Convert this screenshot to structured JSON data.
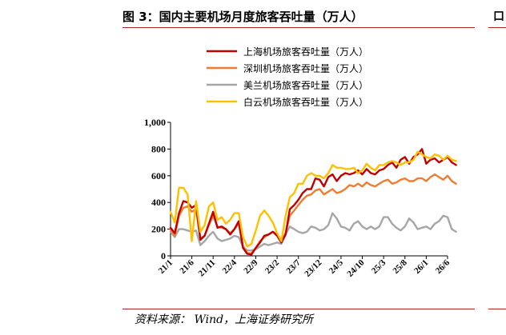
{
  "figure": {
    "title": "图 3：国内主要机场月度旅客吞吐量（万人）",
    "source": "资料来源： Wind，上海证券研究所",
    "edge_mark": "口"
  },
  "chart_data": {
    "type": "line",
    "title": "国内主要机场月度旅客吞吐量（万人）",
    "xlabel": "",
    "ylabel": "",
    "ylim": [
      0,
      1000
    ],
    "yticks": [
      0,
      200,
      400,
      600,
      800,
      1000
    ],
    "ytick_labels": [
      "0",
      "200",
      "400",
      "600",
      "800",
      "1,000"
    ],
    "xlim": [
      "2021-01",
      "2026-06"
    ],
    "xticks": [
      "2021-01",
      "2021-06",
      "2021-11",
      "2022-04",
      "2022-09",
      "2023-02",
      "2023-07",
      "2023-12",
      "2024-05",
      "2024-10",
      "2025-03",
      "2025-08",
      "2026-01",
      "2026-06"
    ],
    "xtick_labels": [
      "21/1",
      "21/6",
      "21/11",
      "22/4",
      "22/9",
      "23/2",
      "23/7",
      "23/12",
      "24/5",
      "24/10",
      "25/3",
      "25/8",
      "26/1",
      "26/6"
    ],
    "grid": false,
    "legend_position": "top-center",
    "series": [
      {
        "name": "上海机场旅客吞吐量（万人）",
        "color": "#c00000",
        "values": [
          210,
          170,
          320,
          410,
          400,
          360,
          380,
          120,
          150,
          240,
          330,
          210,
          220,
          200,
          160,
          200,
          260,
          60,
          15,
          10,
          60,
          100,
          150,
          160,
          180,
          150,
          100,
          160,
          350,
          380,
          420,
          470,
          500,
          500,
          580,
          570,
          520,
          590,
          610,
          560,
          600,
          620,
          610,
          620,
          640,
          610,
          650,
          620,
          610,
          640,
          650,
          680,
          700,
          660,
          720,
          740,
          690,
          740,
          760,
          800,
          690,
          720,
          730,
          700,
          720,
          740,
          700,
          680
        ]
      },
      {
        "name": "深圳机场旅客吞吐量（万人）",
        "color": "#ed7d31",
        "values": [
          200,
          150,
          300,
          360,
          370,
          330,
          350,
          130,
          150,
          230,
          300,
          220,
          210,
          200,
          170,
          200,
          240,
          70,
          20,
          20,
          60,
          110,
          140,
          160,
          180,
          160,
          120,
          170,
          300,
          340,
          380,
          420,
          450,
          460,
          490,
          500,
          460,
          480,
          500,
          470,
          480,
          500,
          530,
          520,
          540,
          520,
          550,
          530,
          520,
          540,
          560,
          570,
          540,
          550,
          570,
          580,
          560,
          560,
          580,
          580,
          560,
          590,
          610,
          590,
          570,
          600,
          560,
          540
        ]
      },
      {
        "name": "美兰机场旅客吞吐量（万人）",
        "color": "#a6a6a6",
        "values": [
          180,
          140,
          200,
          200,
          190,
          180,
          190,
          80,
          110,
          150,
          180,
          130,
          110,
          120,
          130,
          150,
          140,
          70,
          40,
          40,
          50,
          70,
          90,
          80,
          90,
          100,
          90,
          160,
          220,
          200,
          180,
          170,
          180,
          220,
          210,
          190,
          200,
          230,
          320,
          280,
          220,
          210,
          190,
          240,
          260,
          220,
          200,
          220,
          200,
          220,
          290,
          290,
          240,
          210,
          190,
          220,
          280,
          250,
          200,
          210,
          220,
          200,
          240,
          260,
          300,
          290,
          200,
          180
        ]
      },
      {
        "name": "白云机场旅客吞吐量（万人）",
        "color": "#ffc000",
        "values": [
          330,
          250,
          510,
          510,
          460,
          110,
          410,
          180,
          230,
          370,
          400,
          270,
          290,
          240,
          270,
          320,
          320,
          140,
          70,
          90,
          190,
          300,
          340,
          300,
          250,
          170,
          110,
          300,
          440,
          470,
          540,
          540,
          600,
          620,
          600,
          600,
          580,
          620,
          680,
          660,
          660,
          650,
          650,
          660,
          620,
          640,
          690,
          660,
          640,
          680,
          680,
          700,
          710,
          700,
          680,
          700,
          700,
          720,
          780,
          760,
          740,
          730,
          760,
          750,
          720,
          750,
          720,
          710
        ]
      }
    ]
  }
}
